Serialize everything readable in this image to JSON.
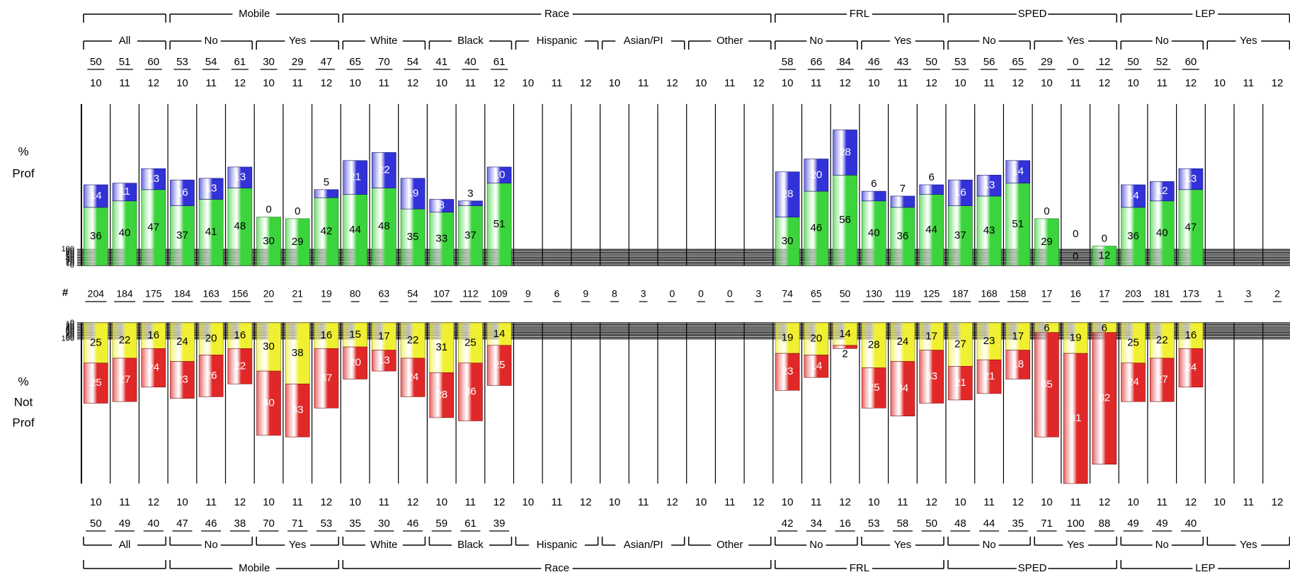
{
  "row_labels": {
    "prof": [
      "%",
      "Prof"
    ],
    "not_prof": [
      "%",
      "Not",
      "Prof"
    ],
    "count": "#"
  },
  "y_ticks": [
    "0",
    "10",
    "20",
    "30",
    "40",
    "50",
    "60",
    "70",
    "80",
    "90",
    "100"
  ],
  "top_groups": [
    "",
    "Mobile",
    "Race",
    "FRL",
    "SPED",
    "LEP"
  ],
  "sub_groups": [
    "All",
    "No",
    "Yes",
    "White",
    "Black",
    "Hispanic",
    "Asian/PI",
    "Other",
    "No",
    "Yes",
    "No",
    "Yes",
    "No",
    "Yes"
  ],
  "grades": [
    "10",
    "11",
    "12"
  ],
  "colors": {
    "proficient": "#3cd43c",
    "advanced": "#3232d8",
    "basic": "#f0f032",
    "below_basic": "#e02828",
    "band_dark": "#c8c8c8",
    "band_light": "#f4f4f4"
  },
  "chart_data": {
    "type": "bar",
    "subtype": "stacked-diverging",
    "ylim": [
      0,
      100
    ],
    "grid": true,
    "columns": [
      {
        "group": "",
        "subgroup": "All",
        "grade": "10",
        "prof_total": "50",
        "proficient": 36,
        "advanced": 14,
        "n": "204",
        "basic": 25,
        "below_basic": 25,
        "not_total": "50"
      },
      {
        "group": "",
        "subgroup": "All",
        "grade": "11",
        "prof_total": "51",
        "proficient": 40,
        "advanced": 11,
        "n": "184",
        "basic": 22,
        "below_basic": 27,
        "not_total": "49"
      },
      {
        "group": "",
        "subgroup": "All",
        "grade": "12",
        "prof_total": "60",
        "proficient": 47,
        "advanced": 13,
        "n": "175",
        "basic": 16,
        "below_basic": 24,
        "not_total": "40"
      },
      {
        "group": "Mobile",
        "subgroup": "No",
        "grade": "10",
        "prof_total": "53",
        "proficient": 37,
        "advanced": 16,
        "n": "184",
        "basic": 24,
        "below_basic": 23,
        "not_total": "47"
      },
      {
        "group": "Mobile",
        "subgroup": "No",
        "grade": "11",
        "prof_total": "54",
        "proficient": 41,
        "advanced": 13,
        "n": "163",
        "basic": 20,
        "below_basic": 26,
        "not_total": "46"
      },
      {
        "group": "Mobile",
        "subgroup": "No",
        "grade": "12",
        "prof_total": "61",
        "proficient": 48,
        "advanced": 13,
        "n": "156",
        "basic": 16,
        "below_basic": 22,
        "not_total": "38"
      },
      {
        "group": "Mobile",
        "subgroup": "Yes",
        "grade": "10",
        "prof_total": "30",
        "proficient": 30,
        "advanced": 0,
        "n": "20",
        "basic": 30,
        "below_basic": 40,
        "not_total": "70"
      },
      {
        "group": "Mobile",
        "subgroup": "Yes",
        "grade": "11",
        "prof_total": "29",
        "proficient": 29,
        "advanced": 0,
        "n": "21",
        "basic": 38,
        "below_basic": 33,
        "not_total": "71"
      },
      {
        "group": "Mobile",
        "subgroup": "Yes",
        "grade": "12",
        "prof_total": "47",
        "proficient": 42,
        "advanced": 5,
        "n": "19",
        "basic": 16,
        "below_basic": 37,
        "not_total": "53"
      },
      {
        "group": "Race",
        "subgroup": "White",
        "grade": "10",
        "prof_total": "65",
        "proficient": 44,
        "advanced": 21,
        "n": "80",
        "basic": 15,
        "below_basic": 20,
        "not_total": "35"
      },
      {
        "group": "Race",
        "subgroup": "White",
        "grade": "11",
        "prof_total": "70",
        "proficient": 48,
        "advanced": 22,
        "n": "63",
        "basic": 17,
        "below_basic": 13,
        "not_total": "30"
      },
      {
        "group": "Race",
        "subgroup": "White",
        "grade": "12",
        "prof_total": "54",
        "proficient": 35,
        "advanced": 19,
        "n": "54",
        "basic": 22,
        "below_basic": 24,
        "not_total": "46"
      },
      {
        "group": "Race",
        "subgroup": "Black",
        "grade": "10",
        "prof_total": "41",
        "proficient": 33,
        "advanced": 8,
        "n": "107",
        "basic": 31,
        "below_basic": 28,
        "not_total": "59"
      },
      {
        "group": "Race",
        "subgroup": "Black",
        "grade": "11",
        "prof_total": "40",
        "proficient": 37,
        "advanced": 3,
        "n": "112",
        "basic": 25,
        "below_basic": 36,
        "not_total": "61"
      },
      {
        "group": "Race",
        "subgroup": "Black",
        "grade": "12",
        "prof_total": "61",
        "proficient": 51,
        "advanced": 10,
        "n": "109",
        "basic": 14,
        "below_basic": 25,
        "not_total": "39"
      },
      {
        "group": "Race",
        "subgroup": "Hispanic",
        "grade": "10",
        "prof_total": "",
        "proficient": null,
        "advanced": null,
        "n": "9",
        "basic": null,
        "below_basic": null,
        "not_total": ""
      },
      {
        "group": "Race",
        "subgroup": "Hispanic",
        "grade": "11",
        "prof_total": "",
        "proficient": null,
        "advanced": null,
        "n": "6",
        "basic": null,
        "below_basic": null,
        "not_total": ""
      },
      {
        "group": "Race",
        "subgroup": "Hispanic",
        "grade": "12",
        "prof_total": "",
        "proficient": null,
        "advanced": null,
        "n": "9",
        "basic": null,
        "below_basic": null,
        "not_total": ""
      },
      {
        "group": "Race",
        "subgroup": "Asian/PI",
        "grade": "10",
        "prof_total": "",
        "proficient": null,
        "advanced": null,
        "n": "8",
        "basic": null,
        "below_basic": null,
        "not_total": ""
      },
      {
        "group": "Race",
        "subgroup": "Asian/PI",
        "grade": "11",
        "prof_total": "",
        "proficient": null,
        "advanced": null,
        "n": "3",
        "basic": null,
        "below_basic": null,
        "not_total": ""
      },
      {
        "group": "Race",
        "subgroup": "Asian/PI",
        "grade": "12",
        "prof_total": "",
        "proficient": null,
        "advanced": null,
        "n": "0",
        "basic": null,
        "below_basic": null,
        "not_total": ""
      },
      {
        "group": "Race",
        "subgroup": "Other",
        "grade": "10",
        "prof_total": "",
        "proficient": null,
        "advanced": null,
        "n": "0",
        "basic": null,
        "below_basic": null,
        "not_total": ""
      },
      {
        "group": "Race",
        "subgroup": "Other",
        "grade": "11",
        "prof_total": "",
        "proficient": null,
        "advanced": null,
        "n": "0",
        "basic": null,
        "below_basic": null,
        "not_total": ""
      },
      {
        "group": "Race",
        "subgroup": "Other",
        "grade": "12",
        "prof_total": "",
        "proficient": null,
        "advanced": null,
        "n": "3",
        "basic": null,
        "below_basic": null,
        "not_total": ""
      },
      {
        "group": "FRL",
        "subgroup": "No",
        "grade": "10",
        "prof_total": "58",
        "proficient": 30,
        "advanced": 28,
        "n": "74",
        "basic": 19,
        "below_basic": 23,
        "not_total": "42"
      },
      {
        "group": "FRL",
        "subgroup": "No",
        "grade": "11",
        "prof_total": "66",
        "proficient": 46,
        "advanced": 20,
        "n": "65",
        "basic": 20,
        "below_basic": 14,
        "not_total": "34"
      },
      {
        "group": "FRL",
        "subgroup": "No",
        "grade": "12",
        "prof_total": "84",
        "proficient": 56,
        "advanced": 28,
        "n": "50",
        "basic": 14,
        "below_basic": 2,
        "not_total": "16"
      },
      {
        "group": "FRL",
        "subgroup": "Yes",
        "grade": "10",
        "prof_total": "46",
        "proficient": 40,
        "advanced": 6,
        "n": "130",
        "basic": 28,
        "below_basic": 25,
        "not_total": "53"
      },
      {
        "group": "FRL",
        "subgroup": "Yes",
        "grade": "11",
        "prof_total": "43",
        "proficient": 36,
        "advanced": 7,
        "n": "119",
        "basic": 24,
        "below_basic": 34,
        "not_total": "58"
      },
      {
        "group": "FRL",
        "subgroup": "Yes",
        "grade": "12",
        "prof_total": "50",
        "proficient": 44,
        "advanced": 6,
        "n": "125",
        "basic": 17,
        "below_basic": 33,
        "not_total": "50"
      },
      {
        "group": "SPED",
        "subgroup": "No",
        "grade": "10",
        "prof_total": "53",
        "proficient": 37,
        "advanced": 16,
        "n": "187",
        "basic": 27,
        "below_basic": 21,
        "not_total": "48"
      },
      {
        "group": "SPED",
        "subgroup": "No",
        "grade": "11",
        "prof_total": "56",
        "proficient": 43,
        "advanced": 13,
        "n": "168",
        "basic": 23,
        "below_basic": 21,
        "not_total": "44"
      },
      {
        "group": "SPED",
        "subgroup": "No",
        "grade": "12",
        "prof_total": "65",
        "proficient": 51,
        "advanced": 14,
        "n": "158",
        "basic": 17,
        "below_basic": 18,
        "not_total": "35"
      },
      {
        "group": "SPED",
        "subgroup": "Yes",
        "grade": "10",
        "prof_total": "29",
        "proficient": 29,
        "advanced": 0,
        "n": "17",
        "basic": 6,
        "below_basic": 65,
        "not_total": "71"
      },
      {
        "group": "SPED",
        "subgroup": "Yes",
        "grade": "11",
        "prof_total": "0",
        "proficient": 0,
        "advanced": 0,
        "n": "16",
        "basic": 19,
        "below_basic": 81,
        "not_total": "100"
      },
      {
        "group": "SPED",
        "subgroup": "Yes",
        "grade": "12",
        "prof_total": "12",
        "proficient": 12,
        "advanced": 0,
        "n": "17",
        "basic": 6,
        "below_basic": 82,
        "not_total": "88"
      },
      {
        "group": "LEP",
        "subgroup": "No",
        "grade": "10",
        "prof_total": "50",
        "proficient": 36,
        "advanced": 14,
        "n": "203",
        "basic": 25,
        "below_basic": 24,
        "not_total": "49"
      },
      {
        "group": "LEP",
        "subgroup": "No",
        "grade": "11",
        "prof_total": "52",
        "proficient": 40,
        "advanced": 12,
        "n": "181",
        "basic": 22,
        "below_basic": 27,
        "not_total": "49"
      },
      {
        "group": "LEP",
        "subgroup": "No",
        "grade": "12",
        "prof_total": "60",
        "proficient": 47,
        "advanced": 13,
        "n": "173",
        "basic": 16,
        "below_basic": 24,
        "not_total": "40"
      },
      {
        "group": "LEP",
        "subgroup": "Yes",
        "grade": "10",
        "prof_total": "",
        "proficient": null,
        "advanced": null,
        "n": "1",
        "basic": null,
        "below_basic": null,
        "not_total": ""
      },
      {
        "group": "LEP",
        "subgroup": "Yes",
        "grade": "11",
        "prof_total": "",
        "proficient": null,
        "advanced": null,
        "n": "3",
        "basic": null,
        "below_basic": null,
        "not_total": ""
      },
      {
        "group": "LEP",
        "subgroup": "Yes",
        "grade": "12",
        "prof_total": "",
        "proficient": null,
        "advanced": null,
        "n": "2",
        "basic": null,
        "below_basic": null,
        "not_total": ""
      }
    ]
  }
}
